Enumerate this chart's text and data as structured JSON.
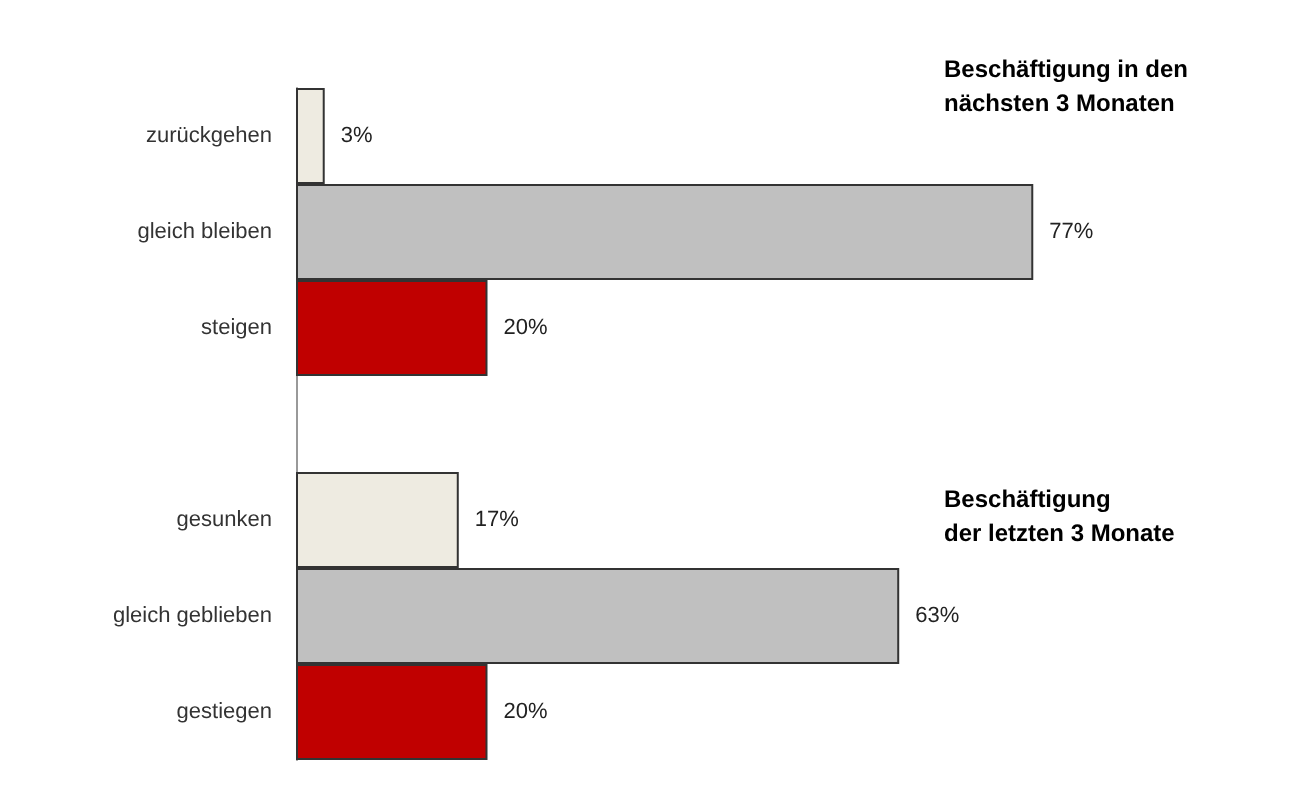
{
  "chart_data": {
    "type": "bar",
    "orientation": "horizontal",
    "categories": [
      "zurückgehen",
      "gleich bleiben",
      "steigen",
      null,
      "gesunken",
      "gleich geblieben",
      "gestiegen"
    ],
    "values": [
      3,
      77,
      20,
      null,
      17,
      63,
      20
    ],
    "value_labels": [
      "3%",
      "77%",
      "20%",
      null,
      "17%",
      "63%",
      "20%"
    ],
    "colors": [
      "#eeebe1",
      "#c0c0c0",
      "#c00000",
      null,
      "#eeebe1",
      "#c0c0c0",
      "#c00000"
    ],
    "annotations": [
      "Beschäftigung in den nächsten 3 Monaten",
      "Beschäftigung der letzten 3 Monate"
    ]
  }
}
